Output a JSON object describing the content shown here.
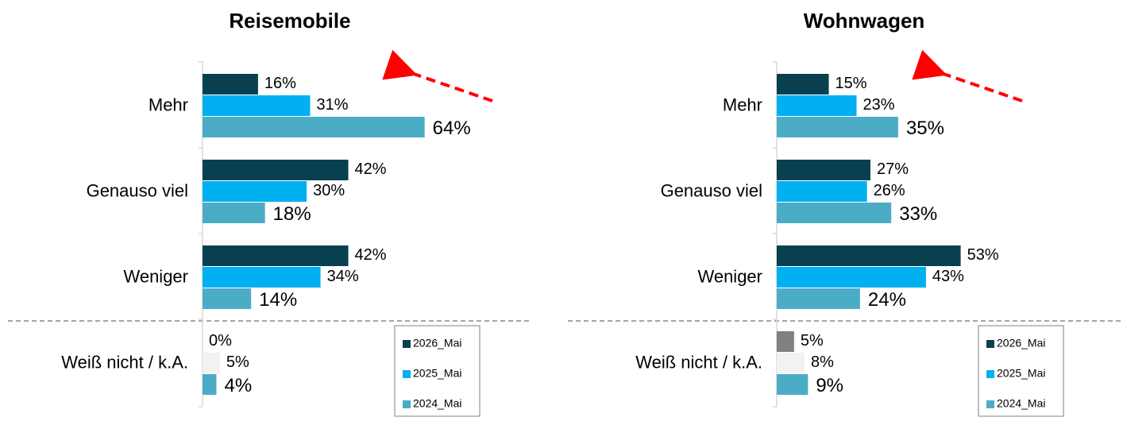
{
  "chart_data": [
    {
      "type": "bar",
      "title": "Reisemobile",
      "categories": [
        "Mehr",
        "Genauso viel",
        "Weniger",
        "Weiß nicht / k.A."
      ],
      "series": [
        {
          "name": "2026_Mai",
          "color": "#08404f",
          "colors": [
            "#08404f",
            "#08404f",
            "#08404f",
            "#808080"
          ],
          "values": [
            16,
            42,
            42,
            0
          ],
          "value_labels": [
            "16%",
            "42%",
            "42%",
            "0%"
          ]
        },
        {
          "name": "2025_Mai",
          "color": "#00b0f0",
          "colors": [
            "#00b0f0",
            "#00b0f0",
            "#00b0f0",
            "#f2f2f2"
          ],
          "values": [
            31,
            30,
            34,
            5
          ],
          "value_labels": [
            "31%",
            "30%",
            "34%",
            "5%"
          ]
        },
        {
          "name": "2024_Mai",
          "color": "#4bacc6",
          "colors": [
            "#4bacc6",
            "#4bacc6",
            "#4bacc6",
            "#4bacc6"
          ],
          "values": [
            64,
            18,
            14,
            4
          ],
          "value_labels": [
            "64%",
            "18%",
            "14%",
            "4%"
          ]
        }
      ]
    },
    {
      "type": "bar",
      "title": "Wohnwagen",
      "categories": [
        "Mehr",
        "Genauso viel",
        "Weniger",
        "Weiß nicht / k.A."
      ],
      "series": [
        {
          "name": "2026_Mai",
          "color": "#08404f",
          "colors": [
            "#08404f",
            "#08404f",
            "#08404f",
            "#808080"
          ],
          "values": [
            15,
            27,
            53,
            5
          ],
          "value_labels": [
            "15%",
            "27%",
            "53%",
            "5%"
          ]
        },
        {
          "name": "2025_Mai",
          "color": "#00b0f0",
          "colors": [
            "#00b0f0",
            "#00b0f0",
            "#00b0f0",
            "#f2f2f2"
          ],
          "values": [
            23,
            26,
            43,
            8
          ],
          "value_labels": [
            "23%",
            "26%",
            "43%",
            "8%"
          ]
        },
        {
          "name": "2024_Mai",
          "color": "#4bacc6",
          "colors": [
            "#4bacc6",
            "#4bacc6",
            "#4bacc6",
            "#4bacc6"
          ],
          "values": [
            35,
            33,
            24,
            9
          ],
          "value_labels": [
            "35%",
            "33%",
            "24%",
            "9%"
          ]
        }
      ]
    }
  ]
}
